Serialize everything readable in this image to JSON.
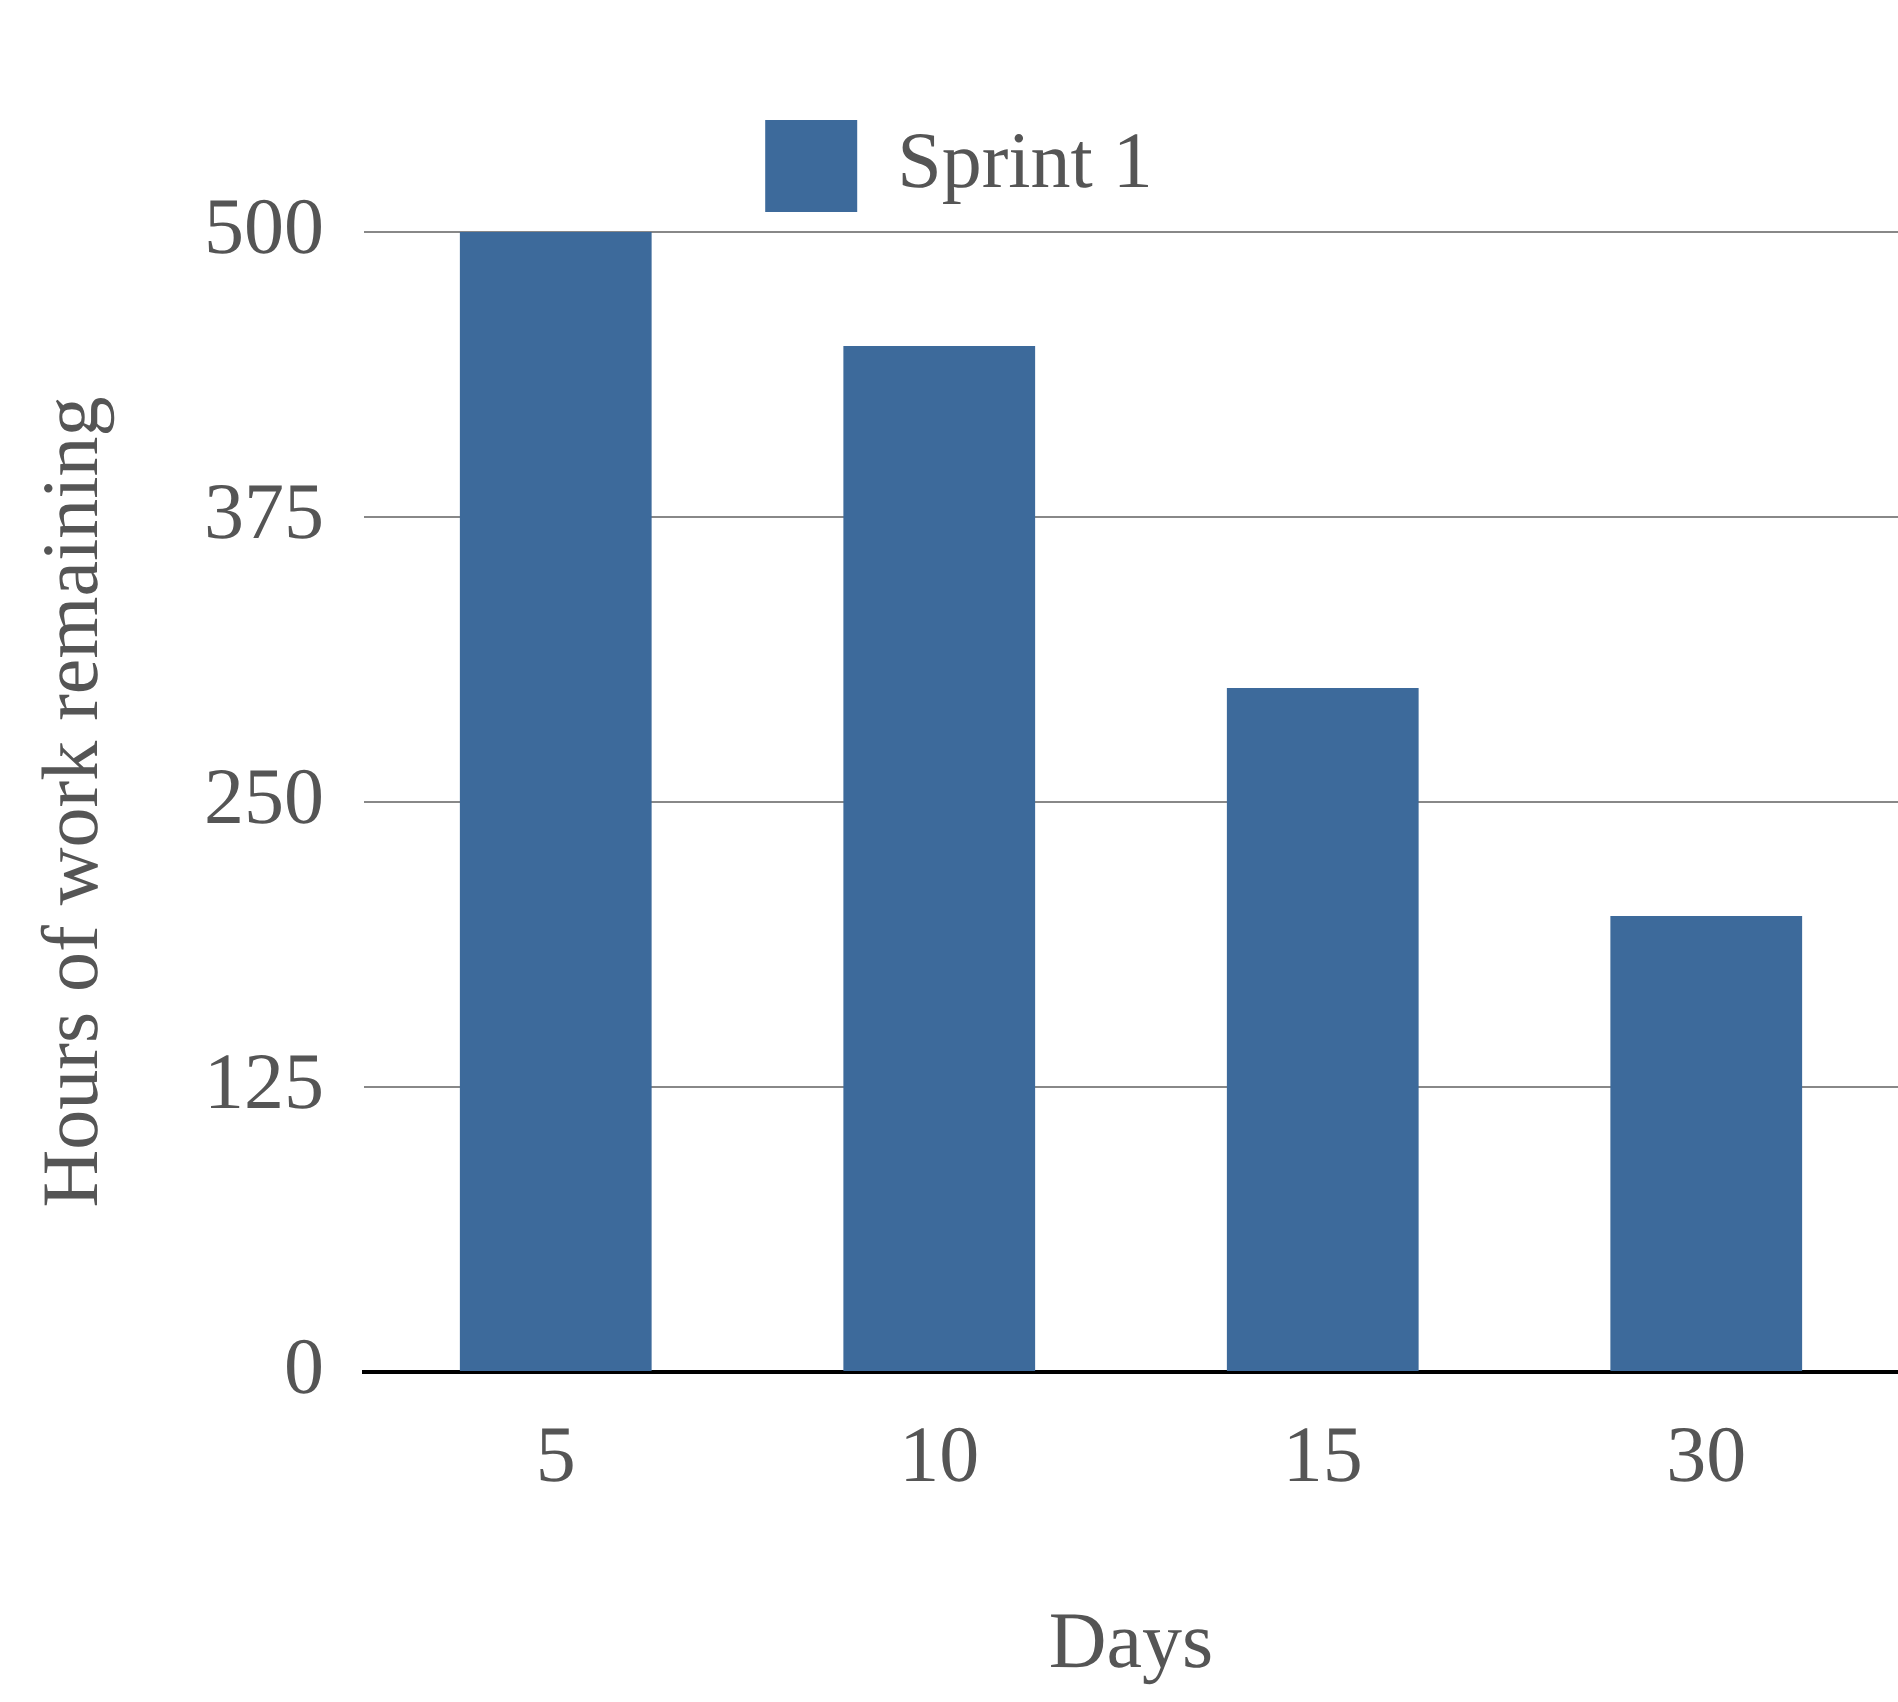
{
  "chart_data": {
    "type": "bar",
    "xlabel": "Days",
    "ylabel": "Hours of work remaining",
    "categories": [
      "5",
      "10",
      "15",
      "30"
    ],
    "series": [
      {
        "name": "Sprint 1",
        "color": "#3d6a9b",
        "values": [
          500,
          450,
          300,
          200
        ]
      }
    ],
    "ylim": [
      0,
      500
    ],
    "yticks": [
      0,
      125,
      250,
      375,
      500
    ],
    "grid": "y",
    "legend": "top"
  }
}
